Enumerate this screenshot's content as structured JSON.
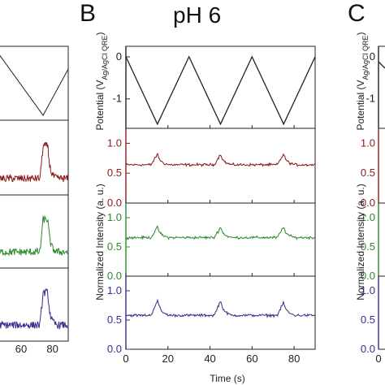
{
  "figure": {
    "panel_b_letter": "B",
    "panel_c_letter": "C",
    "title": "pH 6",
    "xlabel": "Time (s)",
    "ylabel_potential_prefix": "Potential (V",
    "ylabel_potential_sub": "Ag/AgCl QRE",
    "ylabel_potential_suffix": ")",
    "ylabel_intensity": "Normalized Intensity (a. u.)",
    "left_partial_ticks": [
      "60",
      "80"
    ]
  },
  "colors": {
    "potential": "#222222",
    "red": "#8b1a1a",
    "green": "#2a8a2a",
    "blue": "#3a2a8a"
  },
  "chart_data": [
    {
      "type": "line",
      "name_ref": "potential",
      "x_ticks": [
        "0",
        "20",
        "40",
        "60",
        "80"
      ],
      "y_ticks": [
        "0",
        "-1"
      ],
      "xlim": [
        0,
        90
      ],
      "ylim": [
        -1.7,
        0.25
      ],
      "series": [
        {
          "x": [
            0,
            15,
            30,
            45,
            60,
            75,
            90
          ],
          "values": [
            0,
            -1.6,
            0,
            -1.6,
            0,
            -1.6,
            0
          ]
        }
      ]
    },
    {
      "type": "line",
      "name_ref": "red",
      "y_ticks": [
        "0.0",
        "0.5",
        "1.0"
      ],
      "xlim": [
        0,
        90
      ],
      "ylim": [
        0,
        1.25
      ],
      "baseline": 0.64,
      "peaks": [
        {
          "x": 15,
          "height": 0.18
        },
        {
          "x": 45,
          "height": 0.18
        },
        {
          "x": 75,
          "height": 0.18
        }
      ]
    },
    {
      "type": "line",
      "name_ref": "green",
      "y_ticks": [
        "0.0",
        "0.5",
        "1.0"
      ],
      "xlim": [
        0,
        90
      ],
      "ylim": [
        0,
        1.25
      ],
      "baseline": 0.66,
      "peaks": [
        {
          "x": 15,
          "height": 0.18
        },
        {
          "x": 45,
          "height": 0.18
        },
        {
          "x": 75,
          "height": 0.18
        }
      ]
    },
    {
      "type": "line",
      "name_ref": "blue",
      "y_ticks": [
        "0.0",
        "0.5",
        "1.0"
      ],
      "xlim": [
        0,
        90
      ],
      "ylim": [
        0,
        1.25
      ],
      "baseline": 0.58,
      "peaks": [
        {
          "x": 15,
          "height": 0.26
        },
        {
          "x": 45,
          "height": 0.25
        },
        {
          "x": 75,
          "height": 0.22
        }
      ]
    }
  ]
}
